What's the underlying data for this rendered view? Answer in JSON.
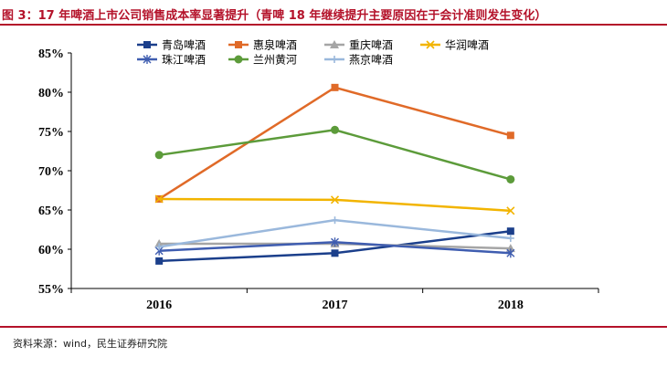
{
  "header": {
    "title": "图 3：17 年啤酒上市公司销售成本率显著提升（青啤 18 年继续提升主要原因在于会计准则发生变化）"
  },
  "footer": {
    "source": "资料来源：wind，民生证券研究院"
  },
  "chart_data": {
    "type": "line",
    "title": "",
    "xlabel": "",
    "ylabel": "",
    "categories": [
      "2016",
      "2017",
      "2018"
    ],
    "ylim": [
      55,
      85
    ],
    "yticks": [
      "55%",
      "60%",
      "65%",
      "70%",
      "75%",
      "80%",
      "85%"
    ],
    "grid": false,
    "legend_position": "top",
    "series": [
      {
        "name": "青岛啤酒",
        "values": [
          58.5,
          59.5,
          62.3
        ],
        "color": "#1b3f8b",
        "marker": "square"
      },
      {
        "name": "惠泉啤酒",
        "values": [
          66.4,
          80.6,
          74.5
        ],
        "color": "#e06a28",
        "marker": "square"
      },
      {
        "name": "重庆啤酒",
        "values": [
          60.7,
          60.7,
          60.1
        ],
        "color": "#a5a5a5",
        "marker": "triangle"
      },
      {
        "name": "华润啤酒",
        "values": [
          66.4,
          66.3,
          64.9
        ],
        "color": "#f2b400",
        "marker": "x"
      },
      {
        "name": "珠江啤酒",
        "values": [
          59.8,
          60.9,
          59.5
        ],
        "color": "#3f5db0",
        "marker": "star"
      },
      {
        "name": "兰州黄河",
        "values": [
          72.0,
          75.2,
          68.9
        ],
        "color": "#5c9b3a",
        "marker": "circle"
      },
      {
        "name": "燕京啤酒",
        "values": [
          60.3,
          63.7,
          61.4
        ],
        "color": "#9ab8dc",
        "marker": "plus"
      }
    ]
  }
}
